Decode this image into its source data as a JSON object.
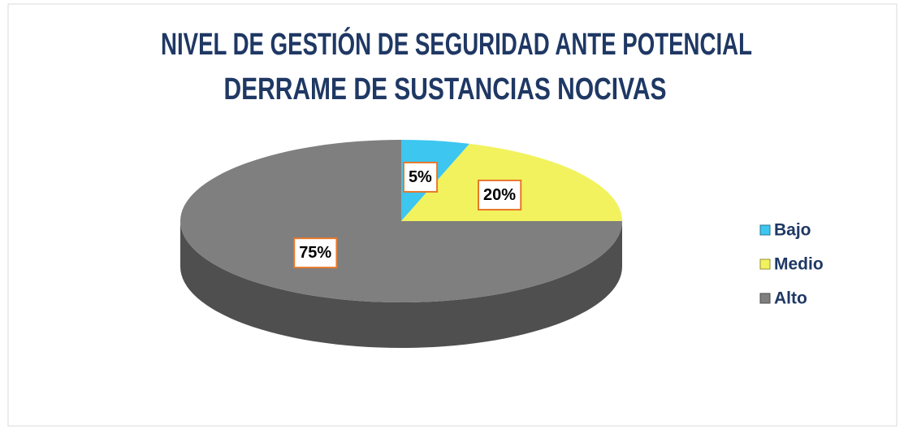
{
  "chart_data": {
    "type": "pie",
    "title": [
      "NIVEL DE GESTIÓN DE SEGURIDAD ANTE POTENCIAL",
      "DERRAME DE SUSTANCIAS NOCIVAS"
    ],
    "categories": [
      "Bajo",
      "Medio",
      "Alto"
    ],
    "values": [
      5,
      20,
      75
    ],
    "value_labels": [
      "5%",
      "20%",
      "75%"
    ],
    "colors": [
      "#3cc6f0",
      "#f2f25e",
      "#7f7f7f"
    ],
    "legend": "right"
  }
}
